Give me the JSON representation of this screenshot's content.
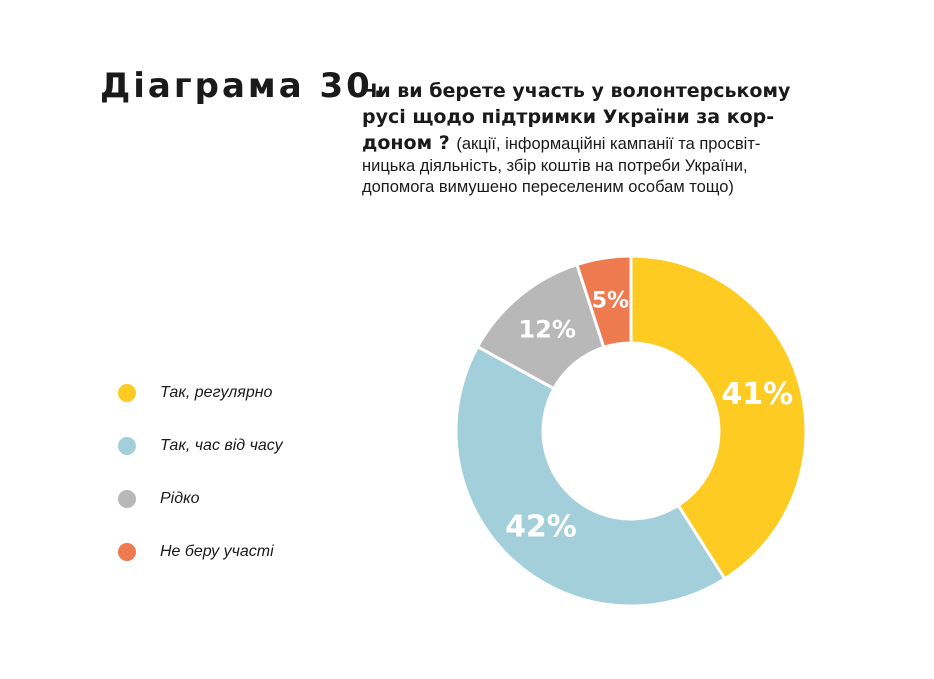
{
  "heading": {
    "label": "Діаграма 30.",
    "question_lines": [
      "Чи ви берете участь у волонтерському",
      "русі щодо підтримки України за кор-",
      "доном ?"
    ],
    "note_first": "(акції, інформаційні кампанії та просвіт-",
    "note_lines": [
      "ницька діяльність, збір коштів на потреби України,",
      "допомога вимушено переселеним особам тощо)"
    ]
  },
  "chart_data": {
    "type": "pie",
    "donut": true,
    "title": "Чи ви берете участь у волонтерському русі щодо підтримки України за кордоном ?",
    "categories": [
      "Так, регулярно",
      "Так, час від часу",
      "Рідко",
      "Не беру участі"
    ],
    "values": [
      41,
      42,
      12,
      5
    ],
    "value_labels": [
      "41%",
      "42%",
      "12%",
      "5%"
    ],
    "colors": [
      "#FDCB22",
      "#A2CFDA",
      "#B8B8B8",
      "#EE7A4F"
    ],
    "legend_position": "left"
  }
}
